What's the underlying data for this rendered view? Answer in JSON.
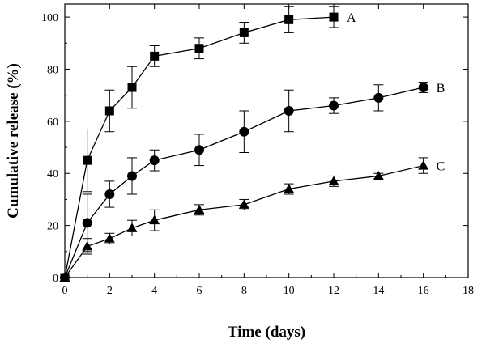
{
  "chart_data": {
    "type": "line",
    "title": "",
    "xlabel": "Time (days)",
    "ylabel": "Cumulative release (%)",
    "xlim": [
      0,
      18
    ],
    "ylim": [
      0,
      105
    ],
    "xticks": [
      0,
      2,
      4,
      6,
      8,
      10,
      12,
      14,
      16,
      18
    ],
    "yticks": [
      0,
      20,
      40,
      60,
      80,
      100
    ],
    "grid": false,
    "legend": "series labels at line ends",
    "series": [
      {
        "name": "A",
        "marker": "square",
        "x": [
          0,
          1,
          2,
          3,
          4,
          6,
          8,
          10,
          12
        ],
        "y": [
          0,
          45,
          64,
          73,
          85,
          88,
          94,
          99,
          100
        ],
        "err": [
          0,
          12,
          8,
          8,
          4,
          4,
          4,
          5,
          4
        ]
      },
      {
        "name": "B",
        "marker": "circle",
        "x": [
          0,
          1,
          2,
          3,
          4,
          6,
          8,
          10,
          12,
          14,
          16
        ],
        "y": [
          0,
          21,
          32,
          39,
          45,
          49,
          56,
          64,
          66,
          69,
          73
        ],
        "err": [
          0,
          11,
          5,
          7,
          4,
          6,
          8,
          8,
          3,
          5,
          2
        ]
      },
      {
        "name": "C",
        "marker": "triangle",
        "x": [
          0,
          1,
          2,
          3,
          4,
          6,
          8,
          10,
          12,
          14,
          16
        ],
        "y": [
          0,
          12,
          15,
          19,
          22,
          26,
          28,
          34,
          37,
          39,
          43
        ],
        "err": [
          0,
          3,
          2,
          3,
          4,
          2,
          2,
          2,
          2,
          1,
          3
        ]
      }
    ]
  }
}
